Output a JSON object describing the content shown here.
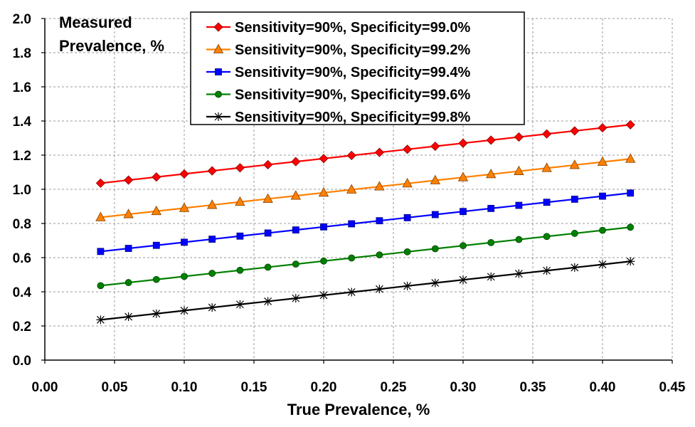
{
  "chart_data": {
    "type": "line",
    "title": "",
    "xlabel": "True Prevalence, %",
    "ylabel_lines": [
      "Measured",
      "Prevalence, %"
    ],
    "xlim": [
      0.0,
      0.45
    ],
    "ylim": [
      0.0,
      2.0
    ],
    "x_ticks": [
      "0.00",
      "0.05",
      "0.10",
      "0.15",
      "0.20",
      "0.25",
      "0.30",
      "0.35",
      "0.40",
      "0.45"
    ],
    "y_ticks": [
      "0.0",
      "0.2",
      "0.4",
      "0.6",
      "0.8",
      "1.0",
      "1.2",
      "1.4",
      "1.6",
      "1.8",
      "2.0"
    ],
    "grid": true,
    "legend_position": "top-center",
    "x": [
      0.04,
      0.06,
      0.08,
      0.1,
      0.12,
      0.14,
      0.16,
      0.18,
      0.2,
      0.22,
      0.24,
      0.26,
      0.28,
      0.3,
      0.32,
      0.34,
      0.36,
      0.38,
      0.4,
      0.42
    ],
    "series": [
      {
        "name": "Sensitivity=90%, Specificity=99.0%",
        "color": "#ff0000",
        "marker": "diamond",
        "values": [
          1.036,
          1.054,
          1.072,
          1.09,
          1.108,
          1.126,
          1.144,
          1.162,
          1.18,
          1.198,
          1.216,
          1.234,
          1.252,
          1.27,
          1.288,
          1.306,
          1.324,
          1.342,
          1.36,
          1.378
        ]
      },
      {
        "name": "Sensitivity=90%, Specificity=99.2%",
        "color": "#ff8000",
        "marker": "triangle",
        "values": [
          0.836,
          0.854,
          0.872,
          0.89,
          0.908,
          0.926,
          0.944,
          0.962,
          0.98,
          0.998,
          1.016,
          1.034,
          1.052,
          1.07,
          1.088,
          1.106,
          1.124,
          1.142,
          1.16,
          1.178
        ]
      },
      {
        "name": "Sensitivity=90%, Specificity=99.4%",
        "color": "#0000ff",
        "marker": "square",
        "values": [
          0.636,
          0.654,
          0.672,
          0.69,
          0.708,
          0.726,
          0.744,
          0.762,
          0.78,
          0.798,
          0.816,
          0.834,
          0.852,
          0.87,
          0.888,
          0.906,
          0.924,
          0.942,
          0.96,
          0.978
        ]
      },
      {
        "name": "Sensitivity=90%, Specificity=99.6%",
        "color": "#008000",
        "marker": "circle",
        "values": [
          0.436,
          0.454,
          0.472,
          0.49,
          0.508,
          0.526,
          0.544,
          0.562,
          0.58,
          0.598,
          0.616,
          0.634,
          0.652,
          0.67,
          0.688,
          0.706,
          0.724,
          0.742,
          0.76,
          0.778
        ]
      },
      {
        "name": "Sensitivity=90%, Specificity=99.8%",
        "color": "#000000",
        "marker": "asterisk",
        "values": [
          0.236,
          0.254,
          0.272,
          0.29,
          0.308,
          0.326,
          0.344,
          0.362,
          0.38,
          0.398,
          0.416,
          0.434,
          0.452,
          0.47,
          0.488,
          0.506,
          0.524,
          0.542,
          0.56,
          0.578
        ]
      }
    ]
  }
}
